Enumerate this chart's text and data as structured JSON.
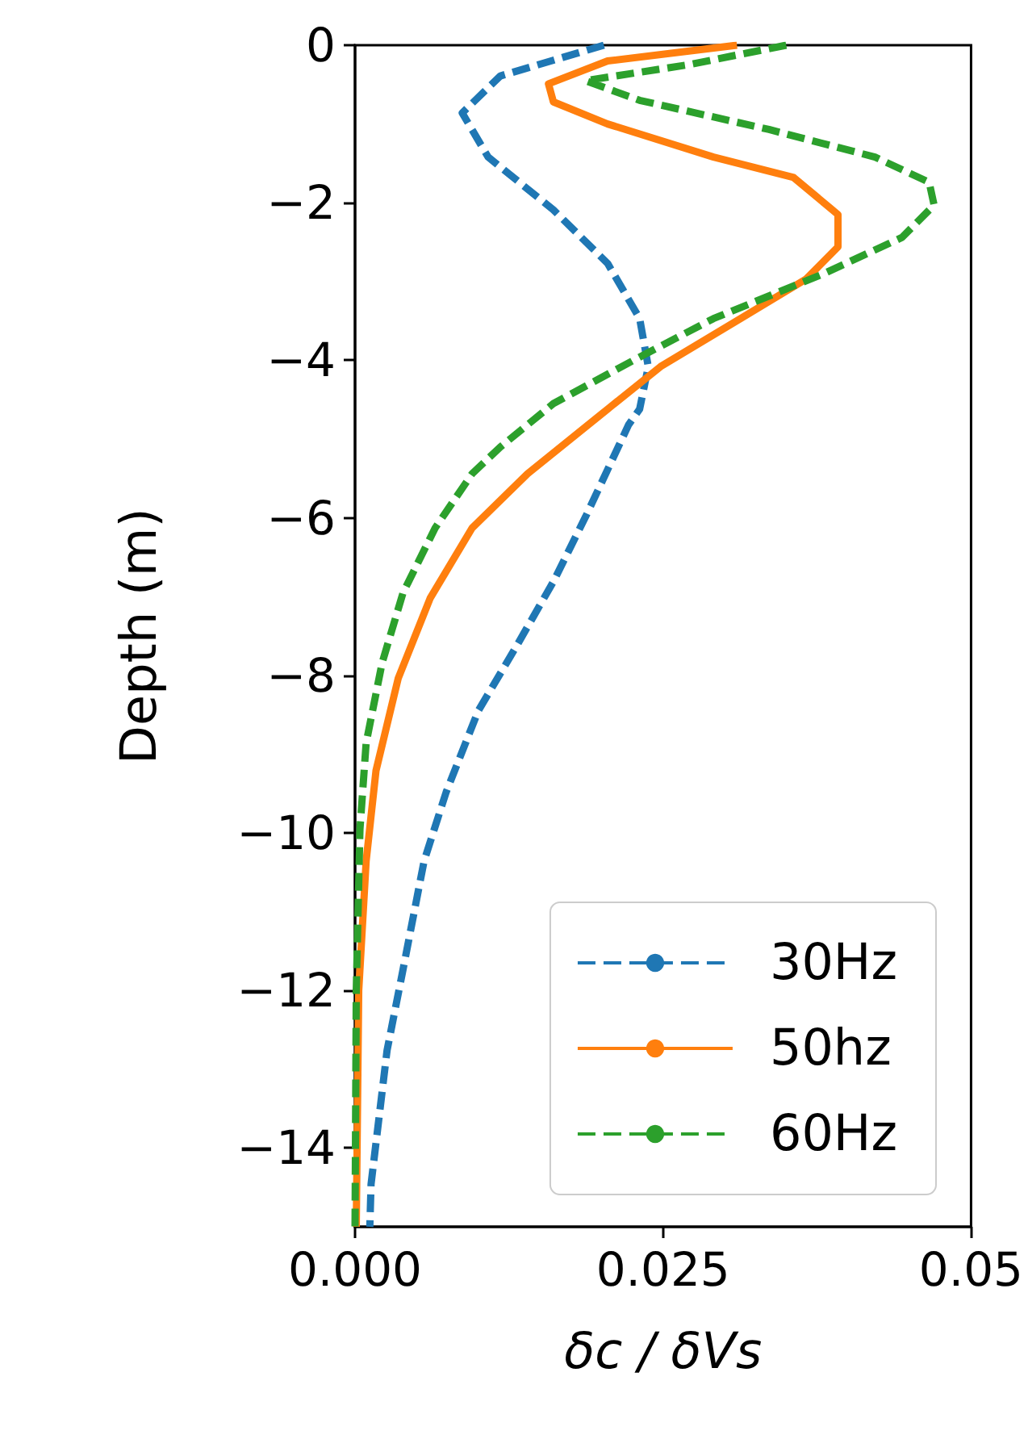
{
  "chart_data": {
    "type": "line",
    "xlabel": "δc / δVs",
    "ylabel": "Depth (m)",
    "xlim": [
      0,
      0.05
    ],
    "ylim": [
      -15,
      0
    ],
    "xticks": [
      {
        "value": 0,
        "label": "0.000"
      },
      {
        "value": 0.025,
        "label": "0.025"
      },
      {
        "value": 0.05,
        "label": "0.05"
      }
    ],
    "yticks": [
      {
        "value": 0,
        "label": "0"
      },
      {
        "value": -2,
        "label": "−2"
      },
      {
        "value": -4,
        "label": "−4"
      },
      {
        "value": -6,
        "label": "−6"
      },
      {
        "value": -8,
        "label": "−8"
      },
      {
        "value": -10,
        "label": "−10"
      },
      {
        "value": -12,
        "label": "−12"
      },
      {
        "value": -14,
        "label": "−14"
      }
    ],
    "grid": false,
    "legend": "bottom right",
    "marker": "none",
    "series": [
      {
        "name": "30Hz",
        "color": "#1f77b4",
        "line_style": "dashed",
        "x": [
          0.0202,
          0.0118,
          0.0087,
          0.0108,
          0.0161,
          0.0205,
          0.0231,
          0.0238,
          0.0231,
          0.0222,
          0.0187,
          0.0161,
          0.0131,
          0.01,
          0.0074,
          0.0056,
          0.0039,
          0.0026,
          0.0013,
          0.0012
        ],
        "values": [
          0,
          -0.39,
          -0.86,
          -1.42,
          -2.09,
          -2.77,
          -3.47,
          -4.08,
          -4.62,
          -4.82,
          -5.99,
          -6.81,
          -7.63,
          -8.45,
          -9.48,
          -10.36,
          -11.73,
          -12.76,
          -14.46,
          -15
        ]
      },
      {
        "name": "50hz",
        "color": "#ff7f0e",
        "line_style": "solid",
        "x": [
          0.031,
          0.0205,
          0.0157,
          0.0161,
          0.0205,
          0.0291,
          0.0356,
          0.0392,
          0.0392,
          0.0366,
          0.0313,
          0.0248,
          0.0205,
          0.014,
          0.0095,
          0.0061,
          0.0035,
          0.0017,
          0.0009,
          0.0003,
          0.0001
        ],
        "values": [
          0,
          -0.2,
          -0.49,
          -0.72,
          -1.0,
          -1.42,
          -1.68,
          -2.15,
          -2.56,
          -2.97,
          -3.47,
          -4.08,
          -4.62,
          -5.44,
          -6.13,
          -7.02,
          -8.04,
          -9.21,
          -10.36,
          -12,
          -15
        ]
      },
      {
        "name": "60Hz",
        "color": "#2ca02c",
        "line_style": "dashed",
        "x": [
          0.035,
          0.027,
          0.0187,
          0.0231,
          0.0336,
          0.0422,
          0.0466,
          0.047,
          0.0444,
          0.0379,
          0.0291,
          0.0226,
          0.0161,
          0.0118,
          0.0095,
          0.0065,
          0.0039,
          0.0022,
          0.0009,
          0.0004,
          0.0001,
          0
        ],
        "values": [
          0,
          -0.25,
          -0.45,
          -0.7,
          -1.07,
          -1.42,
          -1.74,
          -2.03,
          -2.44,
          -2.91,
          -3.47,
          -4.0,
          -4.55,
          -5.1,
          -5.44,
          -6.13,
          -6.95,
          -7.84,
          -8.86,
          -9.95,
          -12,
          -15
        ]
      }
    ]
  }
}
